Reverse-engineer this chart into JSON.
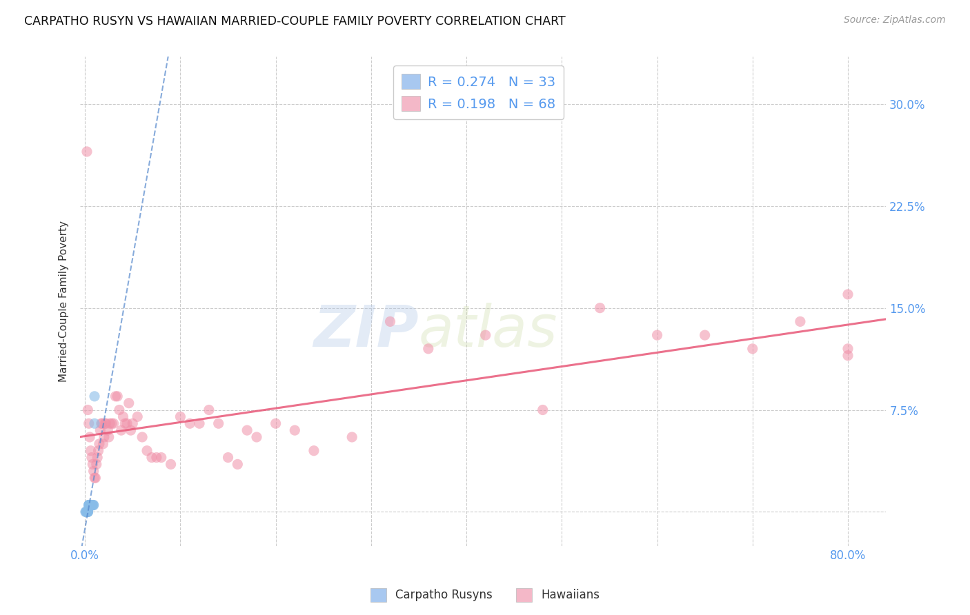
{
  "title": "CARPATHO RUSYN VS HAWAIIAN MARRIED-COUPLE FAMILY POVERTY CORRELATION CHART",
  "source": "Source: ZipAtlas.com",
  "xlabel_ticks_shown": [
    "0.0%",
    "80.0%"
  ],
  "xlabel_vals_shown": [
    0.0,
    0.8
  ],
  "ylabel_ticks": [
    "7.5%",
    "15.0%",
    "22.5%",
    "30.0%"
  ],
  "ylabel_vals": [
    0.075,
    0.15,
    0.225,
    0.3
  ],
  "ylabel_label": "Married-Couple Family Poverty",
  "xlim": [
    -0.005,
    0.84
  ],
  "ylim": [
    -0.025,
    0.335
  ],
  "watermark_zip": "ZIP",
  "watermark_atlas": "atlas",
  "legend_entries": [
    {
      "label": "R = 0.274   N = 33",
      "facecolor": "#a8c8f0"
    },
    {
      "label": "R = 0.198   N = 68",
      "facecolor": "#f4b8c8"
    }
  ],
  "legend_bottom": [
    {
      "label": "Carpatho Rusyns",
      "facecolor": "#a8c8f0"
    },
    {
      "label": "Hawaiians",
      "facecolor": "#f4b8c8"
    }
  ],
  "carpatho_x": [
    0.0005,
    0.001,
    0.0015,
    0.002,
    0.002,
    0.002,
    0.003,
    0.003,
    0.003,
    0.003,
    0.004,
    0.004,
    0.004,
    0.004,
    0.005,
    0.005,
    0.005,
    0.005,
    0.005,
    0.005,
    0.006,
    0.006,
    0.006,
    0.006,
    0.007,
    0.007,
    0.007,
    0.008,
    0.008,
    0.009,
    0.009,
    0.01,
    0.01
  ],
  "carpatho_y": [
    0.0,
    0.0,
    0.0,
    0.0,
    0.0,
    0.0,
    0.0,
    0.0,
    0.0,
    0.0,
    0.005,
    0.005,
    0.005,
    0.005,
    0.005,
    0.005,
    0.005,
    0.005,
    0.005,
    0.005,
    0.005,
    0.005,
    0.005,
    0.005,
    0.005,
    0.005,
    0.005,
    0.005,
    0.005,
    0.005,
    0.005,
    0.065,
    0.085
  ],
  "hawaiian_x": [
    0.002,
    0.003,
    0.004,
    0.005,
    0.006,
    0.007,
    0.008,
    0.009,
    0.01,
    0.011,
    0.012,
    0.013,
    0.014,
    0.015,
    0.016,
    0.017,
    0.018,
    0.019,
    0.02,
    0.021,
    0.022,
    0.024,
    0.025,
    0.026,
    0.028,
    0.03,
    0.032,
    0.034,
    0.036,
    0.038,
    0.04,
    0.042,
    0.044,
    0.046,
    0.048,
    0.05,
    0.055,
    0.06,
    0.065,
    0.07,
    0.075,
    0.08,
    0.09,
    0.1,
    0.11,
    0.12,
    0.13,
    0.14,
    0.15,
    0.16,
    0.17,
    0.18,
    0.2,
    0.22,
    0.24,
    0.28,
    0.32,
    0.36,
    0.42,
    0.48,
    0.54,
    0.6,
    0.65,
    0.7,
    0.75,
    0.8,
    0.8,
    0.8
  ],
  "hawaiian_y": [
    0.265,
    0.075,
    0.065,
    0.055,
    0.045,
    0.04,
    0.035,
    0.03,
    0.025,
    0.025,
    0.035,
    0.04,
    0.045,
    0.05,
    0.06,
    0.065,
    0.065,
    0.05,
    0.055,
    0.065,
    0.065,
    0.06,
    0.055,
    0.065,
    0.065,
    0.065,
    0.085,
    0.085,
    0.075,
    0.06,
    0.07,
    0.065,
    0.065,
    0.08,
    0.06,
    0.065,
    0.07,
    0.055,
    0.045,
    0.04,
    0.04,
    0.04,
    0.035,
    0.07,
    0.065,
    0.065,
    0.075,
    0.065,
    0.04,
    0.035,
    0.06,
    0.055,
    0.065,
    0.06,
    0.045,
    0.055,
    0.14,
    0.12,
    0.13,
    0.075,
    0.15,
    0.13,
    0.13,
    0.12,
    0.14,
    0.12,
    0.16,
    0.115
  ],
  "carpatho_color": "#88bce8",
  "hawaiian_color": "#f090a8",
  "carpatho_trend_color": "#5588cc",
  "hawaiian_trend_color": "#e85878",
  "grid_color": "#cccccc",
  "bg_color": "#ffffff",
  "tick_color": "#5599ee",
  "ylabel_color": "#333333"
}
